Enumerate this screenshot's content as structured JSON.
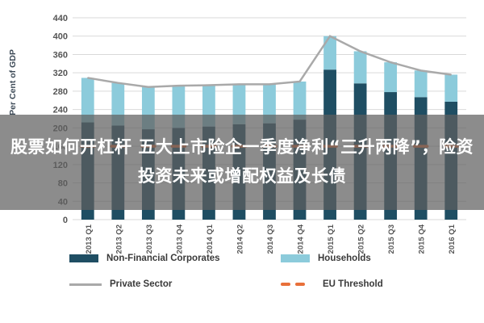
{
  "overlay": {
    "text": "股票如何开杠杆 五大上市险企一季度净利“三升两降”，险资投资未来或增配权益及长债"
  },
  "colors": {
    "nfc": "#1f4e63",
    "households": "#8ccbdb",
    "private": "#a9a9a9",
    "threshold": "#e8703a",
    "grid": "#d9d9d9",
    "axis_text": "#555555"
  },
  "chart_data": {
    "type": "bar",
    "stacked": true,
    "ylabel": "Per Cent of GDP",
    "ylim": [
      0,
      440
    ],
    "yticks": [
      0,
      40,
      80,
      120,
      160,
      200,
      240,
      280,
      320,
      360,
      400,
      440
    ],
    "grid": true,
    "legend_position": "bottom",
    "categories": [
      "2013 Q1",
      "2013 Q2",
      "2013 Q3",
      "2013 Q4",
      "2014 Q1",
      "2014 Q2",
      "2014 Q3",
      "2014 Q4",
      "2015 Q1",
      "2015 Q2",
      "2015 Q3",
      "2015 Q4",
      "2016 Q1"
    ],
    "series": [
      {
        "name": "Non-Financial Corporates",
        "kind": "bar",
        "values": [
          212,
          205,
          197,
          200,
          203,
          208,
          210,
          218,
          327,
          297,
          278,
          267,
          257
        ]
      },
      {
        "name": "Households",
        "kind": "bar",
        "values": [
          97,
          93,
          92,
          92,
          90,
          87,
          85,
          83,
          73,
          70,
          65,
          58,
          59
        ]
      },
      {
        "name": "Private Sector",
        "kind": "line",
        "values": [
          309,
          298,
          289,
          292,
          293,
          295,
          295,
          301,
          400,
          367,
          343,
          325,
          316
        ]
      },
      {
        "name": "EU Threshold",
        "kind": "dashed",
        "values": [
          160,
          160,
          160,
          160,
          160,
          160,
          160,
          160,
          160,
          160,
          160,
          160,
          160
        ]
      }
    ]
  }
}
